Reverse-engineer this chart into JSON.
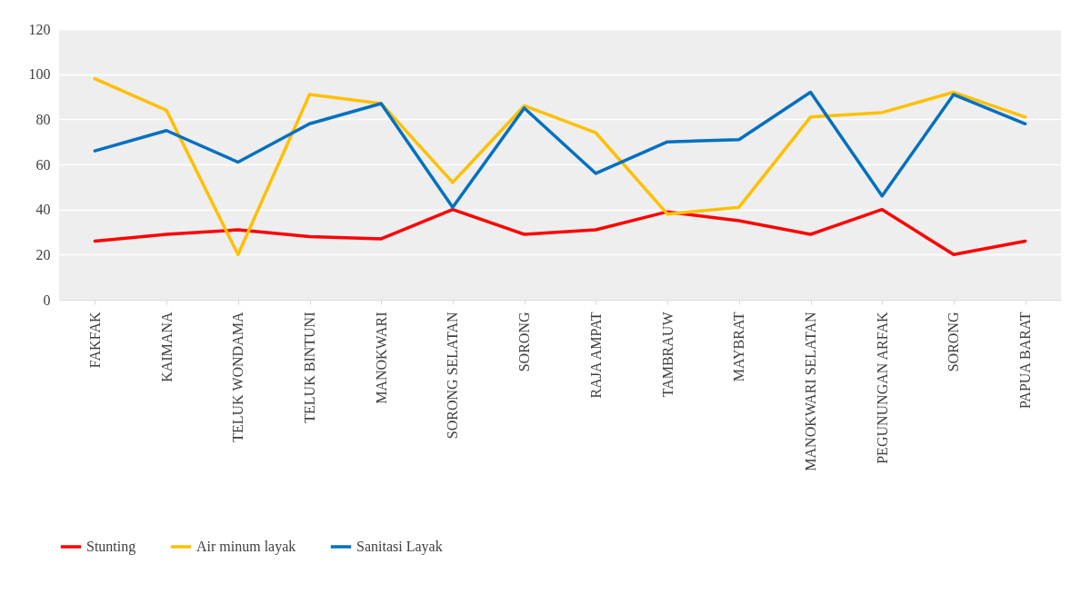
{
  "chart_data": {
    "type": "line",
    "categories": [
      "FAKFAK",
      "KAIMANA",
      "TELUK WONDAMA",
      "TELUK BINTUNI",
      "MANOKWARI",
      "SORONG SELATAN",
      "SORONG",
      "RAJA AMPAT",
      "TAMBRAUW",
      "MAYBRAT",
      "MANOKWARI SELATAN",
      "PEGUNUNGAN ARFAK",
      "SORONG",
      "PAPUA BARAT"
    ],
    "series": [
      {
        "name": "Stunting",
        "color": "#ff0000",
        "values": [
          26,
          29,
          31,
          28,
          27,
          40,
          29,
          31,
          39,
          35,
          29,
          40,
          20,
          26
        ]
      },
      {
        "name": "Air minum layak",
        "color": "#ffc000",
        "values": [
          98,
          84,
          20,
          91,
          87,
          52,
          86,
          74,
          38,
          41,
          81,
          83,
          92,
          81
        ]
      },
      {
        "name": "Sanitasi Layak",
        "color": "#0070c0",
        "values": [
          66,
          75,
          61,
          78,
          87,
          41,
          85,
          56,
          70,
          71,
          92,
          46,
          91,
          78
        ]
      }
    ],
    "ylim": [
      0,
      120
    ],
    "yticks": [
      0,
      20,
      40,
      60,
      80,
      100,
      120
    ],
    "grid": "y",
    "legend": "bottom",
    "marker": "none",
    "line_style": "solid"
  }
}
